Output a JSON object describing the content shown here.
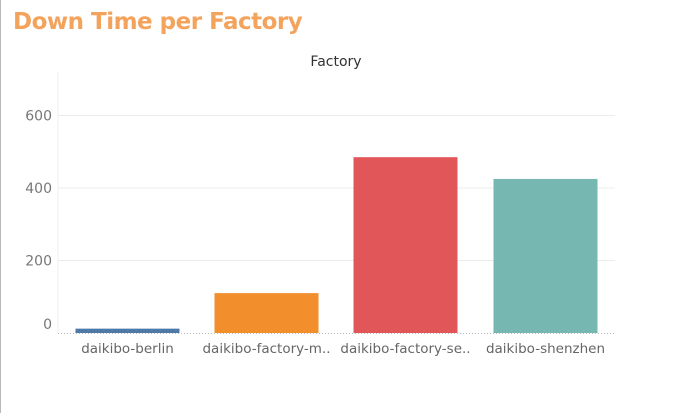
{
  "dashboard": {
    "title": "Down Time per Factory"
  },
  "chart_data": {
    "type": "bar",
    "title": "Down Time per Factory",
    "column_header": "Factory",
    "categories": [
      "daikibo-berlin",
      "daikibo-factory-m..",
      "daikibo-factory-se..",
      "daikibo-shenzhen"
    ],
    "values": [
      12,
      110,
      485,
      425
    ],
    "colors": [
      "#4e79a7",
      "#f28e2b",
      "#e15759",
      "#76b7b2"
    ],
    "ylim": [
      0,
      720
    ],
    "yticks": [
      0,
      200,
      400,
      600
    ],
    "xlabel": "",
    "ylabel": "",
    "grid": true
  }
}
